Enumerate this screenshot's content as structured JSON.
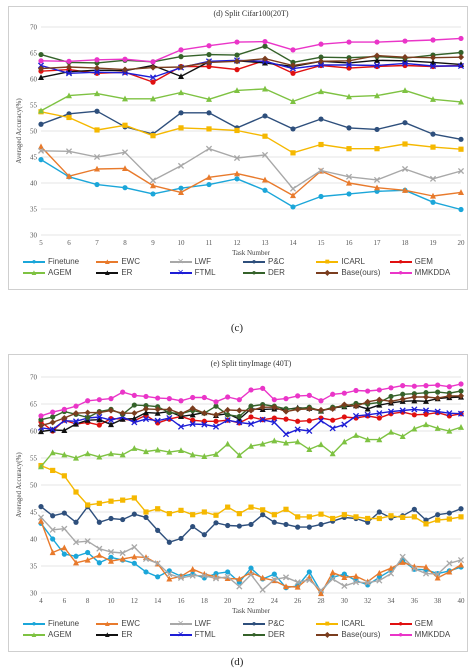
{
  "captions": [
    "(c)",
    "(d)"
  ],
  "chart_data": [
    {
      "type": "line",
      "title": "(d) Split Cifar100(20T)",
      "xlabel": "Task Number",
      "ylabel": "Averaged Accuracy(%)",
      "ylim": [
        30,
        70
      ],
      "yticks": [
        30,
        35,
        40,
        45,
        50,
        55,
        60,
        65,
        70
      ],
      "x": [
        5,
        6,
        7,
        8,
        9,
        10,
        11,
        12,
        13,
        14,
        15,
        16,
        17,
        18,
        19,
        20
      ],
      "grid": "horizontal",
      "legend": "bottom",
      "series": [
        {
          "name": "Finetune",
          "color": "#1ba6d9",
          "marker": "circle",
          "values": [
            44.5,
            41.2,
            39.7,
            39.1,
            37.9,
            39.0,
            39.7,
            40.8,
            38.6,
            35.4,
            37.4,
            37.9,
            38.4,
            38.6,
            36.3,
            34.9
          ]
        },
        {
          "name": "EWC",
          "color": "#e87a2c",
          "marker": "triangle",
          "values": [
            47.0,
            41.3,
            42.7,
            42.8,
            39.5,
            38.2,
            41.1,
            41.8,
            40.6,
            37.6,
            42.3,
            40.0,
            39.1,
            38.6,
            37.5,
            38.2
          ]
        },
        {
          "name": "LWF",
          "color": "#a8a8a8",
          "marker": "x",
          "values": [
            46.2,
            46.1,
            45.0,
            45.9,
            40.5,
            43.3,
            46.6,
            44.8,
            45.4,
            38.9,
            42.4,
            41.2,
            40.6,
            42.7,
            40.8,
            42.3
          ]
        },
        {
          "name": "P&C",
          "color": "#2e4f7c",
          "marker": "circle",
          "values": [
            51.3,
            53.3,
            53.8,
            50.8,
            49.4,
            53.5,
            53.5,
            50.6,
            52.9,
            50.4,
            52.3,
            50.6,
            50.3,
            51.6,
            49.4,
            48.4
          ]
        },
        {
          "name": "ICARL",
          "color": "#f5b800",
          "marker": "square",
          "values": [
            53.7,
            52.6,
            50.2,
            51.1,
            49.1,
            50.6,
            50.4,
            50.1,
            49.0,
            45.8,
            47.4,
            46.6,
            46.6,
            47.5,
            46.9,
            46.5
          ]
        },
        {
          "name": "GEM",
          "color": "#e01010",
          "marker": "circle",
          "values": [
            61.5,
            61.8,
            61.1,
            61.3,
            59.4,
            62.4,
            62.4,
            61.8,
            63.6,
            61.1,
            62.6,
            62.1,
            62.4,
            62.6,
            62.4,
            62.6
          ]
        },
        {
          "name": "AGEM",
          "color": "#7ec242",
          "marker": "triangle",
          "values": [
            53.9,
            56.8,
            57.2,
            56.2,
            56.2,
            57.4,
            56.1,
            57.8,
            58.1,
            55.7,
            57.6,
            56.6,
            56.8,
            57.8,
            56.1,
            55.6
          ]
        },
        {
          "name": "ER",
          "color": "#111111",
          "marker": "triangle",
          "values": [
            60.3,
            61.4,
            61.7,
            61.6,
            62.6,
            60.5,
            63.3,
            63.5,
            63.1,
            62.4,
            63.4,
            63.1,
            63.6,
            63.5,
            63.2,
            62.8
          ]
        },
        {
          "name": "FTML",
          "color": "#1d1dd6",
          "marker": "x",
          "values": [
            62.6,
            61.1,
            61.3,
            61.2,
            60.3,
            62.2,
            63.4,
            63.6,
            63.4,
            62.0,
            62.7,
            62.7,
            62.6,
            63.0,
            62.5,
            62.5
          ]
        },
        {
          "name": "DER",
          "color": "#35622a",
          "marker": "circle",
          "values": [
            64.7,
            63.2,
            63.1,
            63.6,
            63.3,
            64.3,
            64.7,
            64.6,
            66.3,
            63.2,
            64.2,
            64.1,
            64.3,
            64.0,
            64.6,
            65.1
          ]
        },
        {
          "name": "Base(ours)",
          "color": "#7a3d1e",
          "marker": "diamond",
          "values": [
            62.0,
            62.3,
            62.1,
            61.8,
            62.2,
            62.3,
            63.2,
            63.4,
            63.9,
            62.6,
            63.4,
            63.5,
            64.5,
            64.2,
            64.1,
            64.2
          ]
        },
        {
          "name": "MMKDDA",
          "color": "#ea35c8",
          "marker": "circle",
          "values": [
            63.5,
            63.4,
            63.7,
            63.8,
            63.3,
            65.6,
            66.4,
            67.1,
            67.2,
            65.6,
            66.7,
            67.1,
            67.1,
            67.3,
            67.5,
            67.8
          ]
        }
      ]
    },
    {
      "type": "line",
      "title": "(e) Split tinyImage (40T)",
      "xlabel": "Task Number",
      "ylabel": "Averaged Accuracy(%)",
      "ylim": [
        30,
        70
      ],
      "yticks": [
        30,
        35,
        40,
        45,
        50,
        55,
        60,
        65,
        70
      ],
      "x": [
        4,
        5,
        6,
        7,
        8,
        9,
        10,
        11,
        12,
        13,
        14,
        15,
        16,
        17,
        18,
        19,
        20,
        21,
        22,
        23,
        24,
        25,
        26,
        27,
        28,
        29,
        30,
        31,
        32,
        33,
        34,
        35,
        36,
        37,
        38,
        39,
        40
      ],
      "xticks": [
        4,
        6,
        8,
        10,
        12,
        14,
        16,
        18,
        20,
        22,
        24,
        26,
        28,
        30,
        32,
        34,
        36,
        38,
        40
      ],
      "grid": "horizontal",
      "legend": "bottom",
      "series": [
        {
          "name": "Finetune",
          "color": "#1ba6d9",
          "marker": "circle",
          "values": [
            42.9,
            40.0,
            37.2,
            36.8,
            37.5,
            35.6,
            36.6,
            36.1,
            35.5,
            33.9,
            33.0,
            34.1,
            33.1,
            33.5,
            32.8,
            33.6,
            33.9,
            32.0,
            34.6,
            32.6,
            33.5,
            31.0,
            31.3,
            33.9,
            30.2,
            32.9,
            33.5,
            32.3,
            31.5,
            32.9,
            34.2,
            36.0,
            34.4,
            34.3,
            33.6,
            34.1,
            34.8
          ]
        },
        {
          "name": "EWC",
          "color": "#e87a2c",
          "marker": "triangle",
          "values": [
            43.3,
            37.5,
            38.4,
            35.6,
            36.1,
            37.0,
            35.9,
            36.3,
            36.7,
            36.6,
            35.4,
            32.6,
            33.1,
            34.4,
            33.5,
            33.0,
            32.7,
            32.6,
            33.8,
            32.8,
            32.3,
            31.2,
            31.1,
            32.9,
            29.9,
            33.8,
            32.9,
            33.1,
            32.1,
            33.7,
            34.6,
            35.7,
            34.9,
            34.8,
            32.8,
            33.9,
            35.2
          ]
        },
        {
          "name": "LWF",
          "color": "#a8a8a8",
          "marker": "x",
          "values": [
            44.0,
            41.7,
            41.9,
            39.4,
            39.6,
            38.2,
            37.6,
            37.4,
            38.5,
            36.3,
            35.5,
            33.5,
            32.8,
            33.2,
            33.2,
            32.7,
            33.0,
            31.2,
            33.4,
            30.6,
            32.5,
            32.9,
            32.0,
            32.4,
            30.5,
            32.6,
            31.3,
            32.0,
            31.9,
            32.3,
            33.6,
            36.7,
            34.5,
            33.6,
            33.5,
            35.5,
            36.1
          ]
        },
        {
          "name": "P&C",
          "color": "#2e4f7c",
          "marker": "circle",
          "values": [
            46.0,
            44.3,
            44.8,
            43.1,
            46.0,
            43.1,
            43.8,
            43.6,
            44.6,
            44.0,
            41.6,
            39.4,
            40.1,
            42.3,
            40.8,
            43.0,
            42.5,
            42.4,
            42.7,
            44.5,
            43.1,
            42.7,
            42.2,
            42.2,
            42.7,
            43.3,
            44.0,
            43.8,
            43.1,
            45.0,
            43.9,
            44.3,
            45.5,
            43.5,
            44.5,
            44.8,
            45.6
          ]
        },
        {
          "name": "ICARL",
          "color": "#f5b800",
          "marker": "square",
          "values": [
            53.6,
            52.7,
            51.7,
            48.7,
            46.3,
            46.6,
            47.0,
            47.2,
            47.6,
            45.0,
            45.6,
            44.7,
            45.3,
            44.5,
            45.0,
            44.4,
            45.9,
            44.7,
            45.9,
            45.4,
            44.5,
            45.5,
            44.1,
            44.1,
            44.6,
            43.8,
            44.5,
            44.1,
            43.8,
            43.8,
            44.3,
            44.0,
            44.1,
            42.8,
            43.5,
            43.7,
            44.1
          ]
        },
        {
          "name": "GEM",
          "color": "#e01010",
          "marker": "circle",
          "values": [
            61.7,
            60.0,
            62.0,
            61.3,
            61.6,
            61.1,
            62.3,
            62.2,
            61.9,
            62.9,
            61.5,
            62.2,
            62.7,
            62.0,
            61.8,
            61.8,
            62.0,
            61.5,
            62.6,
            62.1,
            62.4,
            62.2,
            61.8,
            61.9,
            62.4,
            62.0,
            62.6,
            62.4,
            62.8,
            62.4,
            63.2,
            63.5,
            63.0,
            63.1,
            63.4,
            62.8,
            63.2
          ]
        },
        {
          "name": "AGEM",
          "color": "#7ec242",
          "marker": "triangle",
          "values": [
            53.4,
            56.0,
            55.6,
            55.0,
            55.8,
            55.2,
            55.8,
            55.6,
            56.8,
            56.2,
            56.5,
            56.1,
            56.4,
            55.6,
            55.3,
            55.7,
            57.6,
            55.5,
            57.2,
            57.6,
            58.2,
            57.8,
            58.0,
            56.6,
            57.5,
            55.8,
            58.0,
            59.2,
            58.4,
            58.4,
            59.8,
            59.0,
            60.4,
            61.2,
            60.5,
            60.0,
            60.7
          ]
        },
        {
          "name": "ER",
          "color": "#111111",
          "marker": "triangle",
          "values": [
            59.9,
            60.2,
            60.1,
            61.3,
            62.0,
            62.1,
            61.2,
            62.2,
            62.3,
            63.4,
            63.3,
            63.6,
            62.7,
            63.0,
            63.4,
            62.9,
            63.2,
            62.2,
            64.1,
            64.0,
            64.1,
            64.0,
            64.3,
            64.2,
            63.7,
            64.3,
            64.5,
            64.7,
            64.1,
            64.8,
            65.2,
            65.5,
            65.6,
            65.5,
            66.0,
            66.2,
            66.3
          ]
        },
        {
          "name": "FTML",
          "color": "#1d1dd6",
          "marker": "x",
          "values": [
            60.6,
            60.3,
            61.9,
            61.8,
            62.4,
            62.6,
            62.0,
            62.6,
            61.6,
            62.2,
            61.9,
            62.4,
            60.8,
            61.3,
            61.2,
            60.8,
            62.0,
            61.6,
            61.3,
            62.1,
            61.6,
            59.4,
            60.3,
            60.0,
            61.9,
            60.5,
            61.2,
            62.8,
            63.0,
            63.3,
            63.6,
            63.8,
            64.0,
            63.8,
            63.6,
            63.3,
            63.2
          ]
        },
        {
          "name": "DER",
          "color": "#35622a",
          "marker": "circle",
          "values": [
            62.1,
            62.6,
            63.6,
            63.1,
            62.5,
            63.6,
            64.0,
            63.1,
            64.8,
            64.7,
            64.5,
            63.4,
            63.2,
            63.8,
            63.3,
            64.6,
            63.0,
            62.7,
            64.6,
            64.9,
            64.6,
            64.1,
            64.1,
            64.4,
            63.7,
            64.4,
            64.6,
            65.1,
            65.0,
            65.3,
            66.4,
            66.8,
            66.9,
            67.1,
            67.2,
            67.0,
            67.4
          ]
        },
        {
          "name": "Base(ours)",
          "color": "#7a3d1e",
          "marker": "diamond",
          "values": [
            61.0,
            61.6,
            62.4,
            63.3,
            63.4,
            63.4,
            63.8,
            63.3,
            63.3,
            64.1,
            64.0,
            64.0,
            63.2,
            64.2,
            63.3,
            63.0,
            63.9,
            63.8,
            63.8,
            64.4,
            64.4,
            63.6,
            64.0,
            64.1,
            63.9,
            64.1,
            64.9,
            64.6,
            65.4,
            65.8,
            65.5,
            65.9,
            66.3,
            66.3,
            66.1,
            66.5,
            66.5
          ]
        },
        {
          "name": "MMKDDA",
          "color": "#ea35c8",
          "marker": "circle",
          "values": [
            62.8,
            63.5,
            64.0,
            64.6,
            65.6,
            65.8,
            66.0,
            67.2,
            66.6,
            66.4,
            66.1,
            66.0,
            65.6,
            66.2,
            66.2,
            65.4,
            66.3,
            65.8,
            67.6,
            67.9,
            65.8,
            66.0,
            66.5,
            66.6,
            65.6,
            66.8,
            67.0,
            67.5,
            67.4,
            67.6,
            68.0,
            68.4,
            68.3,
            68.4,
            68.5,
            68.2,
            68.7
          ]
        }
      ]
    }
  ]
}
